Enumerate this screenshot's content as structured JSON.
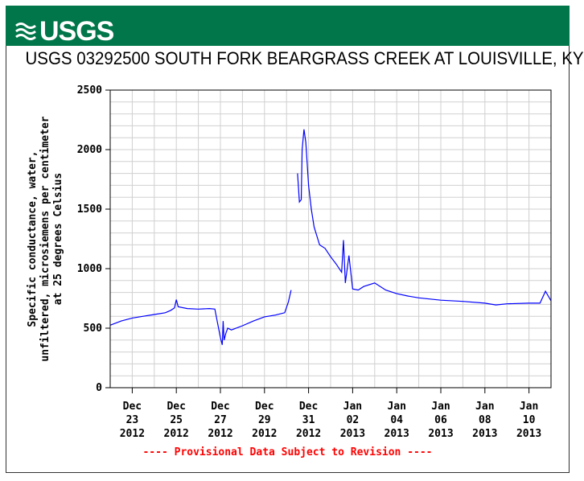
{
  "banner": {
    "logo_text": "USGS",
    "color": "#00764a"
  },
  "chart_data": {
    "type": "line",
    "title": "USGS 03292500 SOUTH FORK BEARGRASS CREEK AT LOUISVILLE, KY",
    "ylabel_lines": [
      "Specific conductance, water,",
      "unfiltered, microsiemens per centimeter",
      "at 25 degrees Celsius"
    ],
    "xlabel": "",
    "ylim": [
      0,
      2500
    ],
    "yticks": [
      0,
      500,
      1000,
      1500,
      2000,
      2500
    ],
    "x_range_days": [
      "2012-12-22",
      "2013-01-11"
    ],
    "xticks": [
      {
        "date": "2012-12-23",
        "lines": [
          "Dec",
          "23",
          "2012"
        ]
      },
      {
        "date": "2012-12-25",
        "lines": [
          "Dec",
          "25",
          "2012"
        ]
      },
      {
        "date": "2012-12-27",
        "lines": [
          "Dec",
          "27",
          "2012"
        ]
      },
      {
        "date": "2012-12-29",
        "lines": [
          "Dec",
          "29",
          "2012"
        ]
      },
      {
        "date": "2012-12-31",
        "lines": [
          "Dec",
          "31",
          "2012"
        ]
      },
      {
        "date": "2013-01-02",
        "lines": [
          "Jan",
          "02",
          "2013"
        ]
      },
      {
        "date": "2013-01-04",
        "lines": [
          "Jan",
          "04",
          "2013"
        ]
      },
      {
        "date": "2013-01-06",
        "lines": [
          "Jan",
          "06",
          "2013"
        ]
      },
      {
        "date": "2013-01-08",
        "lines": [
          "Jan",
          "08",
          "2013"
        ]
      },
      {
        "date": "2013-01-10",
        "lines": [
          "Jan",
          "10",
          "2013"
        ]
      }
    ],
    "grid": true,
    "series": [
      {
        "color": "#0000ff",
        "segments": [
          [
            [
              "2012-12-22T00:00",
              525
            ],
            [
              "2012-12-22T12:00",
              560
            ],
            [
              "2012-12-23T00:00",
              585
            ],
            [
              "2012-12-23T12:00",
              600
            ],
            [
              "2012-12-24T00:00",
              615
            ],
            [
              "2012-12-24T12:00",
              630
            ],
            [
              "2012-12-24T18:00",
              650
            ],
            [
              "2012-12-24T22:00",
              670
            ],
            [
              "2012-12-25T00:00",
              740
            ],
            [
              "2012-12-25T02:00",
              680
            ],
            [
              "2012-12-25T12:00",
              665
            ],
            [
              "2012-12-26T00:00",
              660
            ],
            [
              "2012-12-26T12:00",
              665
            ],
            [
              "2012-12-26T18:00",
              660
            ],
            [
              "2012-12-27T00:00",
              420
            ],
            [
              "2012-12-27T02:00",
              360
            ],
            [
              "2012-12-27T03:00",
              560
            ],
            [
              "2012-12-27T04:00",
              400
            ],
            [
              "2012-12-27T06:00",
              460
            ],
            [
              "2012-12-27T08:00",
              500
            ],
            [
              "2012-12-27T12:00",
              485
            ],
            [
              "2012-12-28T00:00",
              520
            ],
            [
              "2012-12-28T12:00",
              560
            ],
            [
              "2012-12-29T00:00",
              595
            ],
            [
              "2012-12-29T12:00",
              610
            ],
            [
              "2012-12-29T22:00",
              630
            ],
            [
              "2012-12-30T02:00",
              720
            ],
            [
              "2012-12-30T05:00",
              820
            ]
          ],
          [
            [
              "2012-12-30T12:00",
              1800
            ],
            [
              "2012-12-30T14:00",
              1560
            ],
            [
              "2012-12-30T16:00",
              1580
            ],
            [
              "2012-12-30T17:00",
              2000
            ],
            [
              "2012-12-30T19:00",
              2170
            ],
            [
              "2012-12-30T21:00",
              2060
            ],
            [
              "2012-12-31T00:00",
              1700
            ],
            [
              "2012-12-31T03:00",
              1500
            ],
            [
              "2012-12-31T06:00",
              1350
            ],
            [
              "2012-12-31T12:00",
              1200
            ],
            [
              "2012-12-31T18:00",
              1170
            ],
            [
              "2013-01-01T00:00",
              1100
            ],
            [
              "2013-01-01T06:00",
              1040
            ],
            [
              "2013-01-01T12:00",
              970
            ],
            [
              "2013-01-01T14:00",
              1240
            ],
            [
              "2013-01-01T16:00",
              880
            ],
            [
              "2013-01-01T20:00",
              1110
            ],
            [
              "2013-01-02T00:00",
              830
            ],
            [
              "2013-01-02T06:00",
              820
            ],
            [
              "2013-01-02T12:00",
              850
            ],
            [
              "2013-01-03T00:00",
              880
            ],
            [
              "2013-01-03T12:00",
              820
            ],
            [
              "2013-01-04T00:00",
              790
            ],
            [
              "2013-01-04T12:00",
              770
            ],
            [
              "2013-01-05T00:00",
              755
            ],
            [
              "2013-01-06T00:00",
              735
            ],
            [
              "2013-01-07T00:00",
              725
            ],
            [
              "2013-01-08T00:00",
              710
            ],
            [
              "2013-01-08T12:00",
              695
            ],
            [
              "2013-01-09T00:00",
              705
            ],
            [
              "2013-01-10T00:00",
              710
            ],
            [
              "2013-01-10T12:00",
              710
            ],
            [
              "2013-01-10T18:00",
              810
            ],
            [
              "2013-01-11T00:00",
              730
            ]
          ]
        ]
      }
    ]
  },
  "footnote": "---- Provisional Data Subject to Revision ----"
}
